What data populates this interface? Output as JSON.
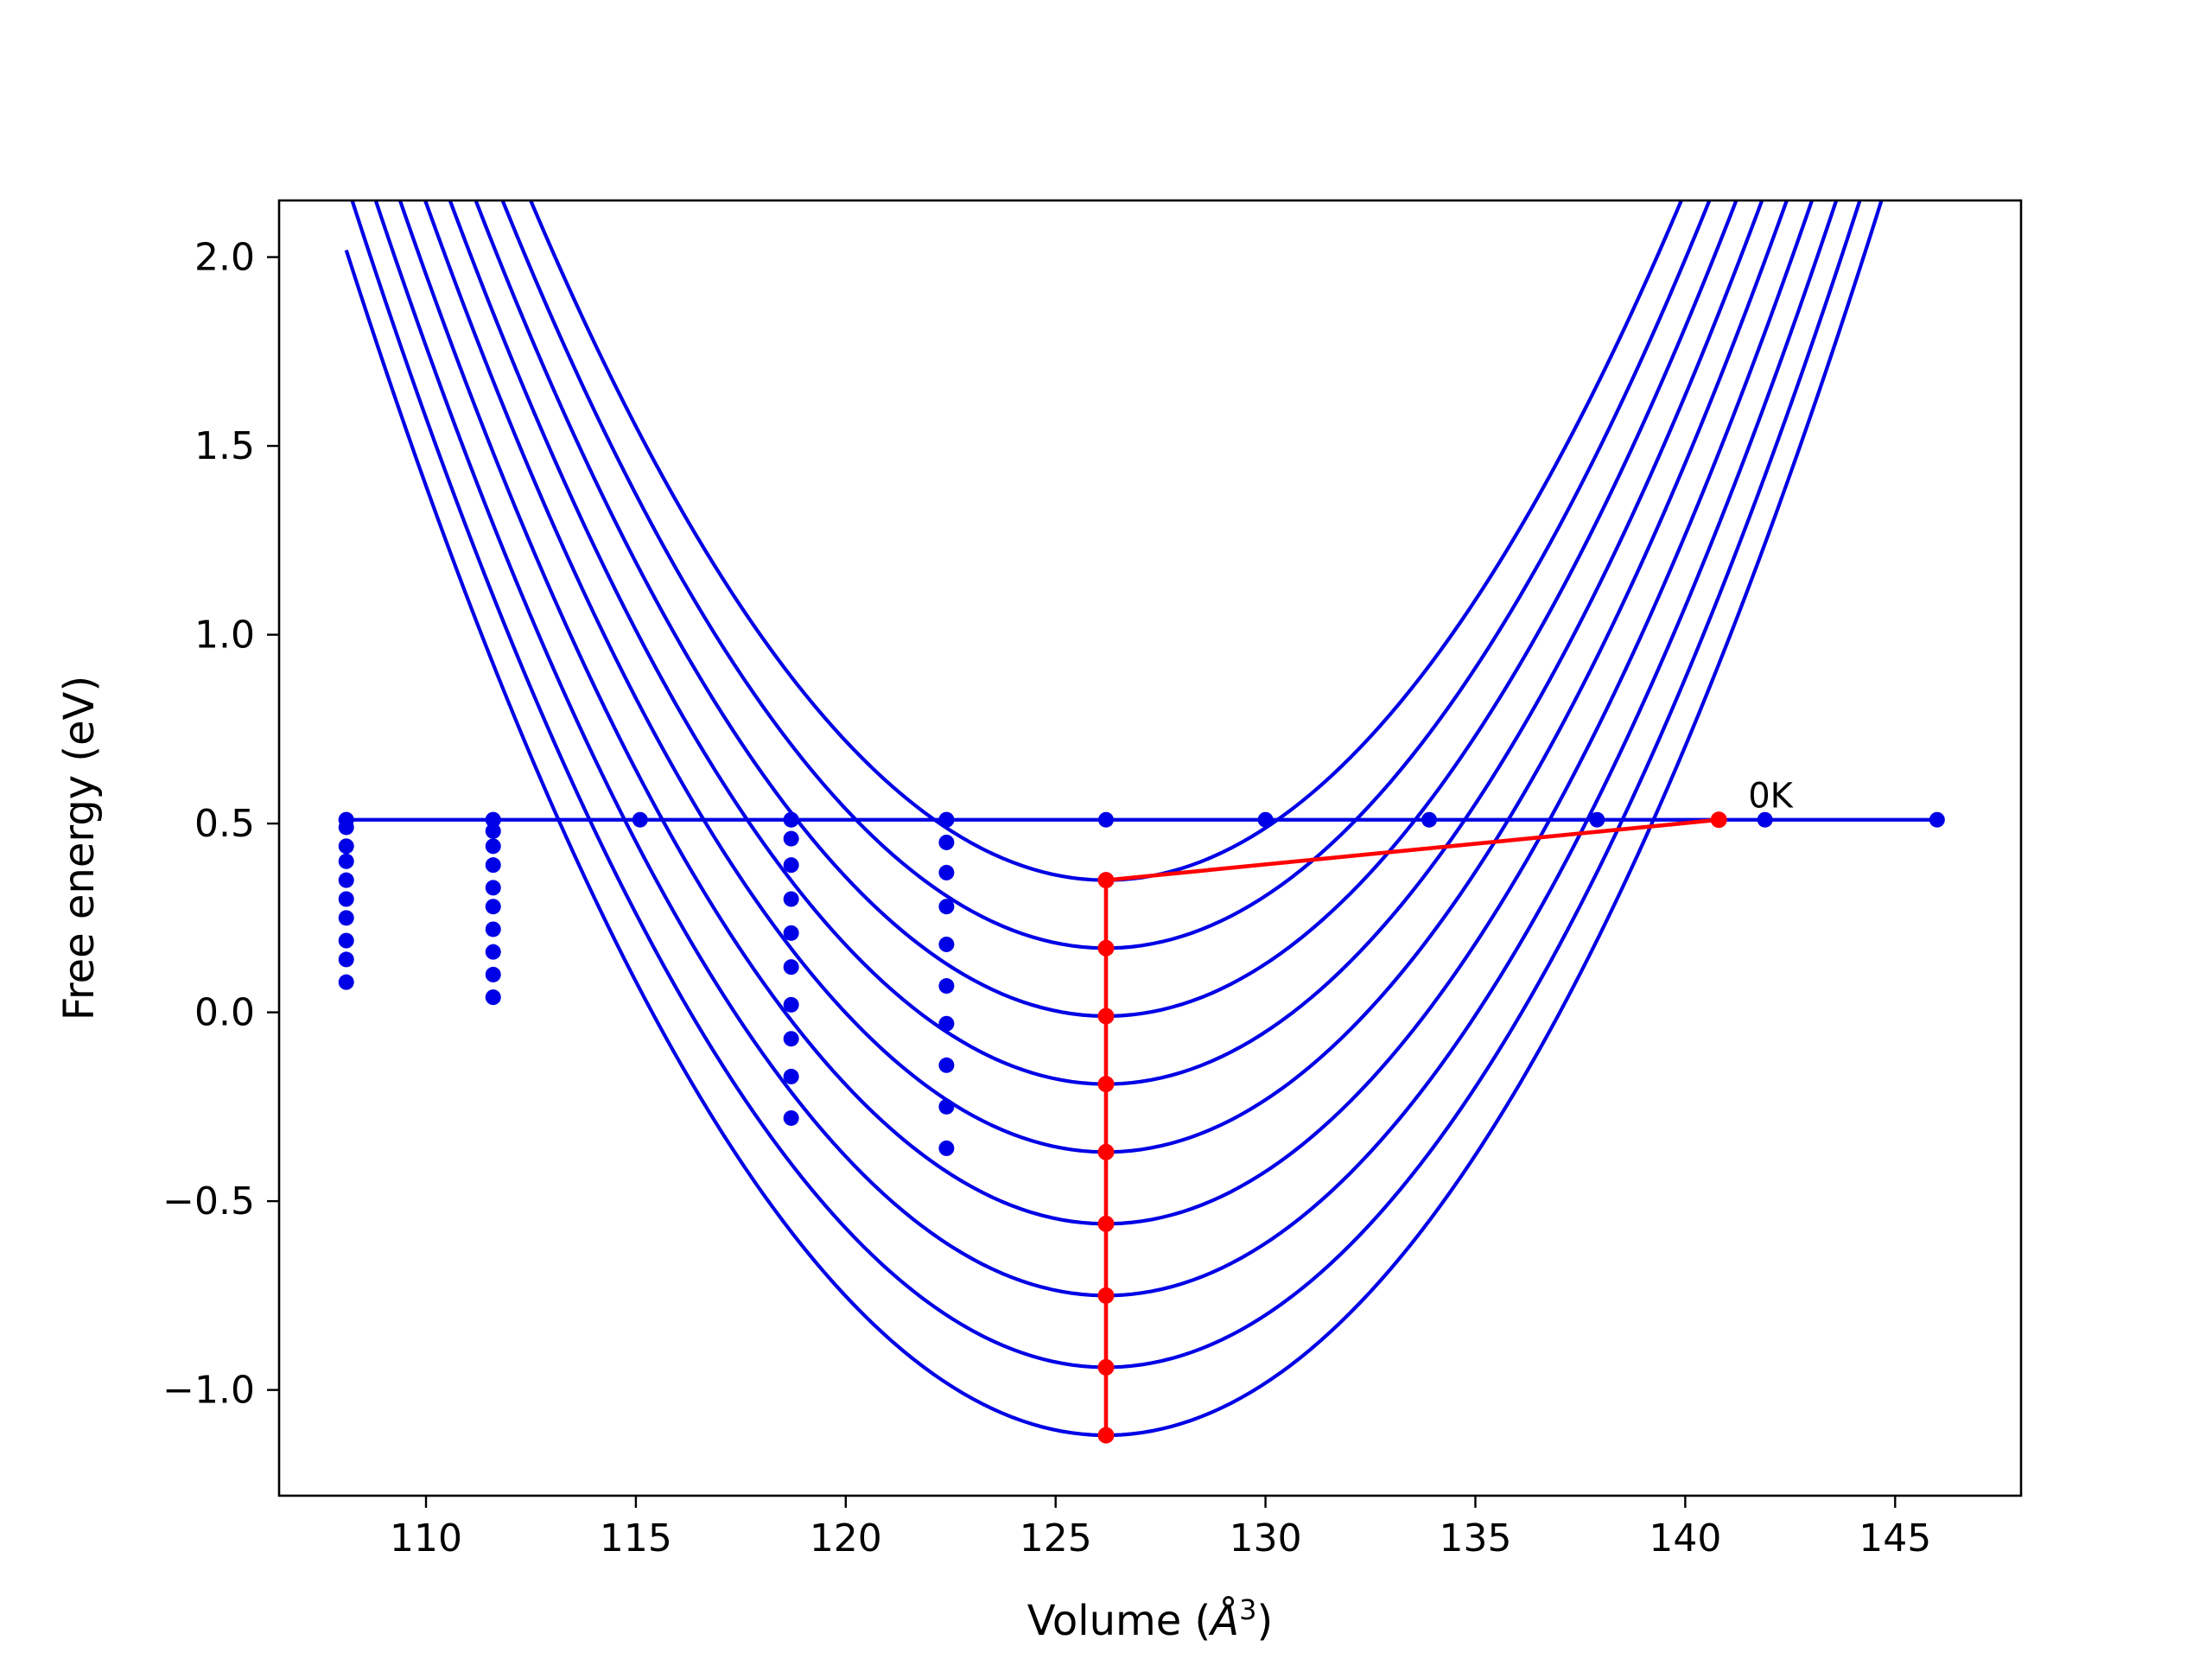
{
  "chart_data": {
    "type": "line",
    "title": "",
    "xlabel": "Volume (Å³)",
    "xlabel_main": "Volume (",
    "xlabel_unit": "Å",
    "xlabel_sup": "3",
    "xlabel_close": ")",
    "ylabel": "Free energy (eV)",
    "xlim": [
      106.5,
      148.0
    ],
    "ylim": [
      -1.28,
      2.15
    ],
    "xticks": [
      110,
      115,
      120,
      125,
      130,
      135,
      140,
      145
    ],
    "xtick_labels": [
      "110",
      "115",
      "120",
      "125",
      "130",
      "135",
      "140",
      "145"
    ],
    "yticks": [
      -1.0,
      -0.5,
      0.0,
      0.5,
      1.0,
      1.5,
      2.0
    ],
    "ytick_labels": [
      "−1.0",
      "−0.5",
      "0.0",
      "0.5",
      "1.0",
      "1.5",
      "2.0"
    ],
    "grid": false,
    "colors": {
      "curves": "#0000e6",
      "highlight": "#ff0000"
    },
    "curves": [
      {
        "minimum_volume": 126.2,
        "minimum_energy": 0.35,
        "a": 0.00958,
        "x_range": [
          108.1,
          146.0
        ]
      },
      {
        "minimum_volume": 126.2,
        "minimum_energy": 0.17,
        "a": 0.00958,
        "x_range": [
          108.1,
          146.0
        ]
      },
      {
        "minimum_volume": 126.2,
        "minimum_energy": -0.01,
        "a": 0.00958,
        "x_range": [
          108.1,
          146.0
        ]
      },
      {
        "minimum_volume": 126.2,
        "minimum_energy": -0.19,
        "a": 0.00958,
        "x_range": [
          108.1,
          146.0
        ]
      },
      {
        "minimum_volume": 126.2,
        "minimum_energy": -0.37,
        "a": 0.00958,
        "x_range": [
          108.1,
          146.0
        ]
      },
      {
        "minimum_volume": 126.2,
        "minimum_energy": -0.56,
        "a": 0.00958,
        "x_range": [
          108.1,
          146.0
        ]
      },
      {
        "minimum_volume": 126.2,
        "minimum_energy": -0.75,
        "a": 0.00958,
        "x_range": [
          108.1,
          146.0
        ]
      },
      {
        "minimum_volume": 126.2,
        "minimum_energy": -0.94,
        "a": 0.00958,
        "x_range": [
          108.1,
          146.0
        ]
      },
      {
        "minimum_volume": 126.2,
        "minimum_energy": -1.12,
        "a": 0.00958,
        "x_range": [
          108.1,
          146.0
        ]
      }
    ],
    "horizontal_line": {
      "y": 0.51,
      "x_range": [
        108.1,
        146.0
      ]
    },
    "horizontal_points": [
      {
        "x": 108.1,
        "y": 0.51
      },
      {
        "x": 111.6,
        "y": 0.51
      },
      {
        "x": 115.1,
        "y": 0.51
      },
      {
        "x": 118.7,
        "y": 0.51
      },
      {
        "x": 122.4,
        "y": 0.51
      },
      {
        "x": 126.2,
        "y": 0.51
      },
      {
        "x": 130.0,
        "y": 0.51
      },
      {
        "x": 133.9,
        "y": 0.51
      },
      {
        "x": 137.9,
        "y": 0.51
      },
      {
        "x": 141.9,
        "y": 0.51
      },
      {
        "x": 146.0,
        "y": 0.51
      }
    ],
    "dot_columns": [
      {
        "x": 108.1,
        "y": [
          0.51,
          0.49,
          0.44,
          0.4,
          0.35,
          0.3,
          0.25,
          0.19,
          0.14,
          0.08
        ]
      },
      {
        "x": 111.6,
        "y": [
          0.51,
          0.48,
          0.44,
          0.39,
          0.33,
          0.28,
          0.22,
          0.16,
          0.1,
          0.04
        ]
      },
      {
        "x": 118.7,
        "y": [
          0.51,
          0.46,
          0.39,
          0.3,
          0.21,
          0.12,
          0.02,
          -0.07,
          -0.17,
          -0.28
        ]
      },
      {
        "x": 122.4,
        "y": [
          0.51,
          0.45,
          0.37,
          0.28,
          0.18,
          0.07,
          -0.03,
          -0.14,
          -0.25,
          -0.36
        ]
      }
    ],
    "highlight_path": [
      {
        "x": 140.8,
        "y": 0.51
      },
      {
        "x": 126.2,
        "y": 0.35
      },
      {
        "x": 126.2,
        "y": 0.17
      },
      {
        "x": 126.2,
        "y": -0.01
      },
      {
        "x": 126.2,
        "y": -0.19
      },
      {
        "x": 126.2,
        "y": -0.37
      },
      {
        "x": 126.2,
        "y": -0.56
      },
      {
        "x": 126.2,
        "y": -0.75
      },
      {
        "x": 126.2,
        "y": -0.94
      },
      {
        "x": 126.2,
        "y": -1.12
      }
    ],
    "annotations": [
      {
        "text": "0K",
        "x": 141.5,
        "y": 0.57
      }
    ]
  }
}
